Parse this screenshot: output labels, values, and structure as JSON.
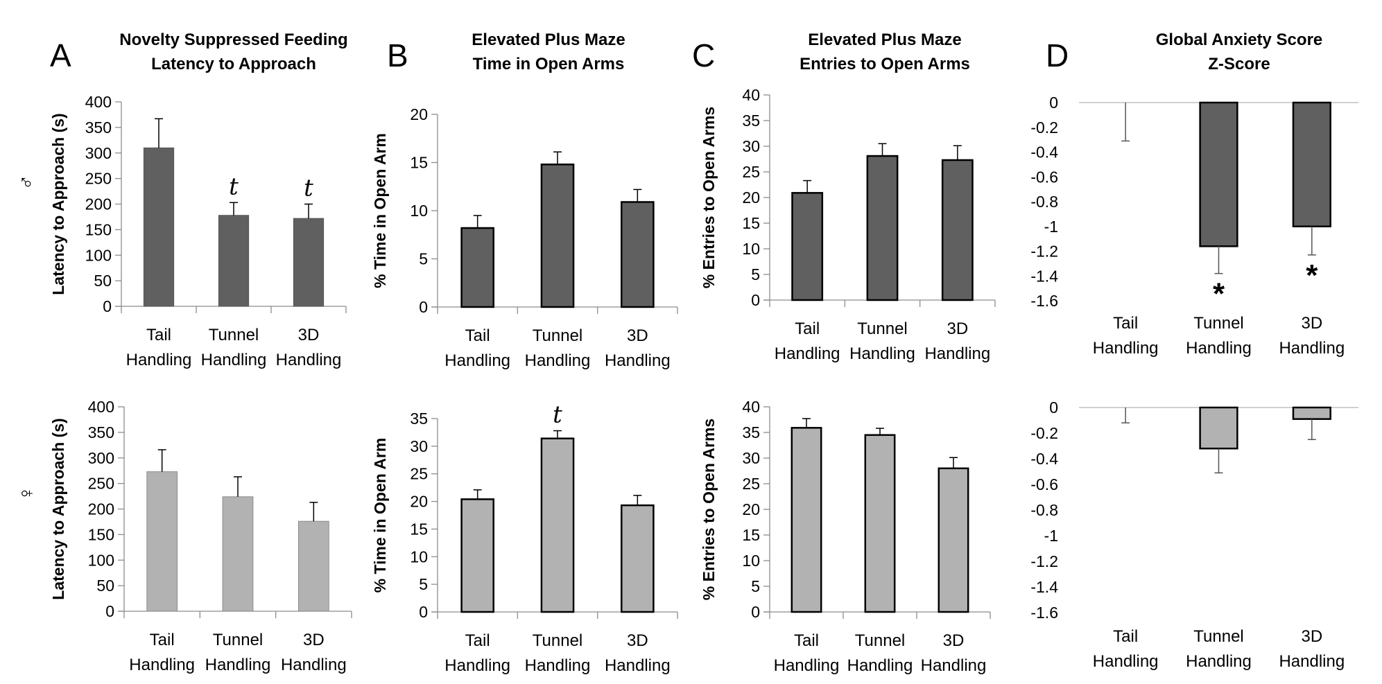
{
  "colors": {
    "male_bar": "#606060",
    "female_bar": "#b2b2b2",
    "axis": "#8c8c8c",
    "zero_line": "#d0d0d0",
    "error_bar": "#000000",
    "error_bar_d": "#555555"
  },
  "sex_labels": {
    "male": "♂",
    "female": "♀"
  },
  "panels": [
    {
      "letter": "A",
      "title": [
        "Novelty Suppressed Feeding",
        "Latency to Approach"
      ]
    },
    {
      "letter": "B",
      "title": [
        "Elevated Plus Maze",
        "Time in Open Arms"
      ]
    },
    {
      "letter": "C",
      "title": [
        "Elevated Plus Maze",
        "Entries to Open Arms"
      ]
    },
    {
      "letter": "D",
      "title": [
        "Global Anxiety Score",
        "Z-Score"
      ]
    }
  ],
  "chart_data": [
    {
      "id": "A-male",
      "panel": "A",
      "sex": "male",
      "type": "bar",
      "title": "Novelty Suppressed Feeding Latency to Approach",
      "categories": [
        "Tail Handling",
        "Tunnel Handling",
        "3D Handling"
      ],
      "category_lines": [
        [
          "Tail",
          "Handling"
        ],
        [
          "Tunnel",
          "Handling"
        ],
        [
          "3D",
          "Handling"
        ]
      ],
      "values": [
        310,
        178,
        172
      ],
      "error_upper": [
        367,
        203,
        200
      ],
      "annotations": [
        "",
        "t",
        "t"
      ],
      "ylabel": "Latency to Approach (s)",
      "ylim": [
        0,
        400
      ],
      "yticks": [
        0,
        50,
        100,
        150,
        200,
        250,
        300,
        350,
        400
      ],
      "bar_border": false,
      "grid": false
    },
    {
      "id": "B-male",
      "panel": "B",
      "sex": "male",
      "type": "bar",
      "title": "Elevated Plus Maze Time in Open Arms",
      "categories": [
        "Tail Handling",
        "Tunnel Handling",
        "3D Handling"
      ],
      "category_lines": [
        [
          "Tail",
          "Handling"
        ],
        [
          "Tunnel",
          "Handling"
        ],
        [
          "3D",
          "Handling"
        ]
      ],
      "values": [
        8.2,
        14.8,
        10.9
      ],
      "error_upper": [
        9.5,
        16.1,
        12.2
      ],
      "annotations": [
        "",
        "",
        ""
      ],
      "ylabel": "% Time in Open Arm",
      "ylim": [
        0,
        20
      ],
      "yticks": [
        0,
        5,
        10,
        15,
        20
      ],
      "bar_border": true,
      "grid": false
    },
    {
      "id": "C-male",
      "panel": "C",
      "sex": "male",
      "type": "bar",
      "title": "Elevated Plus Maze Entries to Open Arms",
      "categories": [
        "Tail Handling",
        "Tunnel Handling",
        "3D Handling"
      ],
      "category_lines": [
        [
          "Tail",
          "Handling"
        ],
        [
          "Tunnel",
          "Handling"
        ],
        [
          "3D",
          "Handling"
        ]
      ],
      "values": [
        20.9,
        28.1,
        27.3
      ],
      "error_upper": [
        23.3,
        30.5,
        30.1
      ],
      "annotations": [
        "",
        "",
        ""
      ],
      "ylabel": "% Entries to Open Arms",
      "ylim": [
        0,
        40
      ],
      "yticks": [
        0,
        5,
        10,
        15,
        20,
        25,
        30,
        35,
        40
      ],
      "bar_border": true,
      "grid": false
    },
    {
      "id": "D-male",
      "panel": "D",
      "sex": "male",
      "type": "bar",
      "title": "Global Anxiety Score Z-Score",
      "categories": [
        "Tail Handling",
        "Tunnel Handling",
        "3D Handling"
      ],
      "category_lines": [
        [
          "Tail",
          "Handling"
        ],
        [
          "Tunnel",
          "Handling"
        ],
        [
          "3D",
          "Handling"
        ]
      ],
      "values": [
        0,
        -1.16,
        -1.0
      ],
      "error_lower": [
        -0.31,
        -1.38,
        -1.23
      ],
      "annotations": [
        "",
        "*",
        "*"
      ],
      "ylabel": "",
      "ylim": [
        -1.6,
        0
      ],
      "yticks": [
        0,
        -0.2,
        -0.4,
        -0.6,
        -0.8,
        -1,
        -1.2,
        -1.4,
        -1.6
      ],
      "bar_border": true,
      "grid": false
    },
    {
      "id": "A-female",
      "panel": "A",
      "sex": "female",
      "type": "bar",
      "title": "Novelty Suppressed Feeding Latency to Approach",
      "categories": [
        "Tail Handling",
        "Tunnel Handling",
        "3D Handling"
      ],
      "category_lines": [
        [
          "Tail",
          "Handling"
        ],
        [
          "Tunnel",
          "Handling"
        ],
        [
          "3D",
          "Handling"
        ]
      ],
      "values": [
        273,
        224,
        176
      ],
      "error_upper": [
        316,
        263,
        213
      ],
      "annotations": [
        "",
        "",
        ""
      ],
      "ylabel": "Latency to Approach (s)",
      "ylim": [
        0,
        400
      ],
      "yticks": [
        0,
        50,
        100,
        150,
        200,
        250,
        300,
        350,
        400
      ],
      "bar_border": false,
      "grid": false
    },
    {
      "id": "B-female",
      "panel": "B",
      "sex": "female",
      "type": "bar",
      "title": "Elevated Plus Maze Time in Open Arms",
      "categories": [
        "Tail Handling",
        "Tunnel Handling",
        "3D Handling"
      ],
      "category_lines": [
        [
          "Tail",
          "Handling"
        ],
        [
          "Tunnel",
          "Handling"
        ],
        [
          "3D",
          "Handling"
        ]
      ],
      "values": [
        20.4,
        31.4,
        19.3
      ],
      "error_upper": [
        22.1,
        32.8,
        21.1
      ],
      "annotations": [
        "",
        "t",
        ""
      ],
      "ylabel": "% Time in Open Arm",
      "ylim": [
        0,
        35
      ],
      "yticks": [
        0,
        5,
        10,
        15,
        20,
        25,
        30,
        35
      ],
      "bar_border": true,
      "grid": false
    },
    {
      "id": "C-female",
      "panel": "C",
      "sex": "female",
      "type": "bar",
      "title": "Elevated Plus Maze Entries to Open Arms",
      "categories": [
        "Tail Handling",
        "Tunnel Handling",
        "3D Handling"
      ],
      "category_lines": [
        [
          "Tail",
          "Handling"
        ],
        [
          "Tunnel",
          "Handling"
        ],
        [
          "3D",
          "Handling"
        ]
      ],
      "values": [
        35.9,
        34.5,
        28.0
      ],
      "error_upper": [
        37.7,
        35.8,
        30.1
      ],
      "annotations": [
        "",
        "",
        ""
      ],
      "ylabel": "% Entries to Open Arms",
      "ylim": [
        0,
        40
      ],
      "yticks": [
        0,
        5,
        10,
        15,
        20,
        25,
        30,
        35,
        40
      ],
      "bar_border": true,
      "grid": false
    },
    {
      "id": "D-female",
      "panel": "D",
      "sex": "female",
      "type": "bar",
      "title": "Global Anxiety Score Z-Score",
      "categories": [
        "Tail Handling",
        "Tunnel Handling",
        "3D Handling"
      ],
      "category_lines": [
        [
          "Tail",
          "Handling"
        ],
        [
          "Tunnel",
          "Handling"
        ],
        [
          "3D",
          "Handling"
        ]
      ],
      "values": [
        0,
        -0.32,
        -0.09
      ],
      "error_lower": [
        -0.12,
        -0.51,
        -0.25
      ],
      "annotations": [
        "",
        "",
        ""
      ],
      "ylabel": "",
      "ylim": [
        -1.6,
        0
      ],
      "yticks": [
        0,
        -0.2,
        -0.4,
        -0.6,
        -0.8,
        -1,
        -1.2,
        -1.4,
        -1.6
      ],
      "bar_border": true,
      "grid": false
    }
  ]
}
